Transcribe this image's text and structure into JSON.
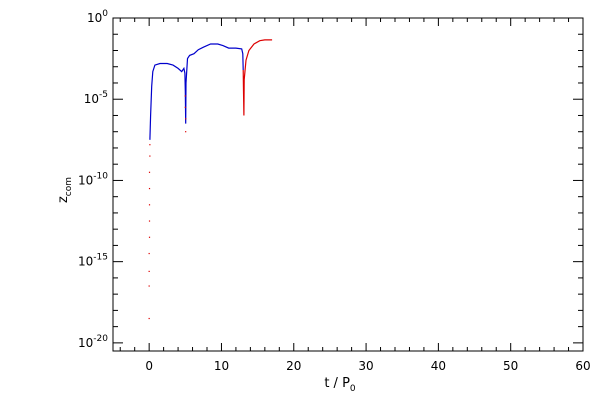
{
  "chart_data": {
    "type": "line",
    "title": "",
    "xlabel": "t / P",
    "xlabel_sub": "0",
    "ylabel": "z",
    "ylabel_sub": "com",
    "xlim": [
      -5,
      60
    ],
    "ylim_log10": [
      -20.5,
      0
    ],
    "y_scale": "log",
    "grid": false,
    "x_ticks": [
      0,
      10,
      20,
      30,
      40,
      50,
      60
    ],
    "x_tick_labels": [
      "0",
      "10",
      "20",
      "30",
      "40",
      "50",
      "60"
    ],
    "y_ticks_exp": [
      -20,
      -15,
      -10,
      -5,
      0
    ],
    "y_tick_labels": [
      {
        "base": "10",
        "exp": "-20"
      },
      {
        "base": "10",
        "exp": "-15"
      },
      {
        "base": "10",
        "exp": "-10"
      },
      {
        "base": "10",
        "exp": "-5"
      },
      {
        "base": "10",
        "exp": "0"
      }
    ],
    "colors": {
      "blue": "#0000cc",
      "red": "#dd0000"
    },
    "series": [
      {
        "color": "blue",
        "style": "line",
        "points": [
          [
            0.1,
            -7.5
          ],
          [
            0.2,
            -6.0
          ],
          [
            0.35,
            -4.2
          ],
          [
            0.5,
            -3.3
          ],
          [
            0.8,
            -2.9
          ],
          [
            1.5,
            -2.8
          ],
          [
            2.5,
            -2.8
          ],
          [
            3.3,
            -2.9
          ],
          [
            4.0,
            -3.1
          ],
          [
            4.5,
            -3.3
          ],
          [
            4.8,
            -3.1
          ],
          [
            4.95,
            -3.4
          ],
          [
            5.0,
            -4.5
          ],
          [
            5.05,
            -6.5
          ],
          [
            5.1,
            -4.0
          ],
          [
            5.3,
            -2.5
          ],
          [
            5.6,
            -2.3
          ],
          [
            6.2,
            -2.2
          ],
          [
            6.8,
            -1.95
          ],
          [
            7.5,
            -1.8
          ],
          [
            8.5,
            -1.6
          ],
          [
            9.5,
            -1.6
          ],
          [
            10.2,
            -1.7
          ],
          [
            11.0,
            -1.85
          ],
          [
            12.0,
            -1.85
          ],
          [
            12.8,
            -1.9
          ],
          [
            12.95,
            -2.2
          ],
          [
            13.0,
            -3.2
          ]
        ]
      },
      {
        "color": "red",
        "style": "dots",
        "points": [
          [
            0.0,
            -18.5
          ],
          [
            0.0,
            -16.5
          ],
          [
            0.0,
            -15.6
          ],
          [
            0.0,
            -14.5
          ],
          [
            0.05,
            -13.5
          ],
          [
            0.05,
            -12.5
          ],
          [
            0.05,
            -11.5
          ],
          [
            0.05,
            -10.5
          ],
          [
            0.05,
            -9.5
          ],
          [
            0.1,
            -8.5
          ],
          [
            0.1,
            -7.8
          ]
        ]
      },
      {
        "color": "red",
        "style": "dots",
        "points": [
          [
            5.0,
            -4.8
          ],
          [
            5.0,
            -5.5
          ],
          [
            5.05,
            -6.2
          ],
          [
            5.05,
            -7.0
          ]
        ]
      },
      {
        "color": "red",
        "style": "line",
        "points": [
          [
            13.0,
            -3.2
          ],
          [
            13.05,
            -4.5
          ],
          [
            13.1,
            -6.0
          ],
          [
            13.15,
            -3.8
          ],
          [
            13.4,
            -2.6
          ],
          [
            13.8,
            -2.0
          ],
          [
            14.5,
            -1.6
          ],
          [
            15.3,
            -1.4
          ],
          [
            16.0,
            -1.35
          ],
          [
            17.0,
            -1.35
          ]
        ]
      }
    ]
  }
}
